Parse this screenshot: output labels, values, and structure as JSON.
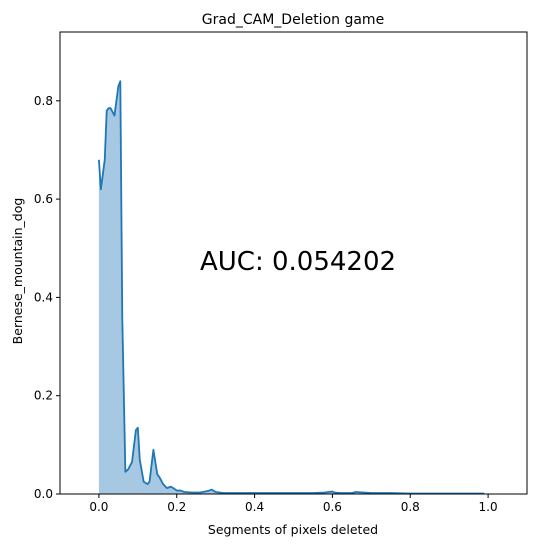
{
  "chart_data": {
    "type": "area",
    "title": "Grad_CAM_Deletion game",
    "xlabel": "Segments of pixels deleted",
    "ylabel": "Bernese_mountain_dog",
    "annotation": "AUC: 0.054202",
    "xlim": [
      -0.1,
      1.1
    ],
    "ylim": [
      0.0,
      0.94
    ],
    "xticks": [
      0.0,
      0.2,
      0.4,
      0.6,
      0.8,
      1.0
    ],
    "xtick_labels": [
      "0.0",
      "0.2",
      "0.4",
      "0.6",
      "0.8",
      "1.0"
    ],
    "yticks": [
      0.0,
      0.2,
      0.4,
      0.6,
      0.8
    ],
    "ytick_labels": [
      "0.0",
      "0.2",
      "0.4",
      "0.6",
      "0.8"
    ],
    "line_color": "#1f77b4",
    "fill_color": "#a6c8e3",
    "grid": false,
    "x": [
      0.0,
      0.005,
      0.01,
      0.015,
      0.02,
      0.025,
      0.03,
      0.04,
      0.05,
      0.055,
      0.06,
      0.068,
      0.075,
      0.085,
      0.095,
      0.1,
      0.105,
      0.115,
      0.125,
      0.13,
      0.14,
      0.15,
      0.155,
      0.165,
      0.175,
      0.185,
      0.195,
      0.2,
      0.21,
      0.22,
      0.24,
      0.26,
      0.28,
      0.29,
      0.3,
      0.32,
      0.35,
      0.4,
      0.45,
      0.5,
      0.55,
      0.58,
      0.6,
      0.605,
      0.62,
      0.65,
      0.66,
      0.68,
      0.7,
      0.75,
      0.8,
      0.85,
      0.9,
      0.95,
      0.99
    ],
    "y": [
      0.68,
      0.62,
      0.65,
      0.68,
      0.78,
      0.785,
      0.785,
      0.77,
      0.83,
      0.84,
      0.36,
      0.045,
      0.05,
      0.065,
      0.13,
      0.135,
      0.07,
      0.025,
      0.02,
      0.025,
      0.09,
      0.04,
      0.035,
      0.02,
      0.012,
      0.015,
      0.01,
      0.007,
      0.007,
      0.004,
      0.003,
      0.003,
      0.006,
      0.009,
      0.004,
      0.002,
      0.002,
      0.002,
      0.002,
      0.002,
      0.002,
      0.003,
      0.005,
      0.003,
      0.002,
      0.002,
      0.004,
      0.003,
      0.002,
      0.002,
      0.001,
      0.001,
      0.001,
      0.001,
      0.001
    ]
  }
}
